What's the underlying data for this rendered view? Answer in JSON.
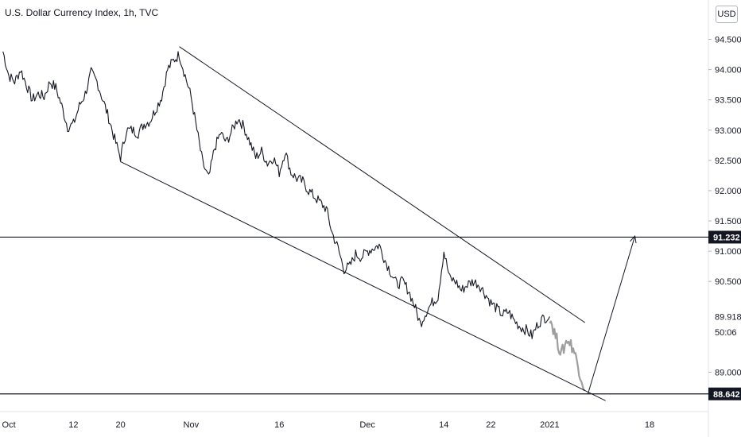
{
  "header": {
    "title": "U.S. Dollar Currency Index, 1h, TVC",
    "currency_button": "USD"
  },
  "chart_data": {
    "type": "line",
    "title": "U.S. Dollar Currency Index, 1h, TVC",
    "xlabel": "",
    "ylabel": "",
    "ylim": [
      88.35,
      95.15
    ],
    "y_ticks": [
      "94.500",
      "94.000",
      "93.500",
      "93.000",
      "92.500",
      "92.000",
      "91.500",
      "91.000",
      "90.500",
      "89.000"
    ],
    "x_ticks": [
      {
        "label": "Oct",
        "day": 0
      },
      {
        "label": "12",
        "day": 11
      },
      {
        "label": "20",
        "day": 19
      },
      {
        "label": "Nov",
        "day": 31
      },
      {
        "label": "16",
        "day": 46
      },
      {
        "label": "Dec",
        "day": 61
      },
      {
        "label": "14",
        "day": 74
      },
      {
        "label": "22",
        "day": 82
      },
      {
        "label": "2021",
        "day": 92
      },
      {
        "label": "18",
        "day": 109
      }
    ],
    "x_range": [
      -1.5,
      119
    ],
    "price_tags": [
      {
        "label": "91.232",
        "value": 91.232,
        "style": "dark"
      },
      {
        "label": "89.918",
        "value": 89.918,
        "style": "plain"
      },
      {
        "label": "50:06",
        "value": 89.66,
        "style": "plain"
      },
      {
        "label": "88.642",
        "value": 88.642,
        "style": "dark"
      }
    ],
    "horizontal_lines": [
      91.232,
      88.642
    ],
    "series": [
      {
        "style": "actual",
        "x": [
          -1,
          0,
          1,
          2,
          3,
          4,
          5,
          6,
          7,
          8,
          9,
          10,
          11,
          12,
          13,
          14,
          15,
          16,
          17,
          18,
          19,
          20,
          21,
          22,
          23,
          24,
          25,
          26,
          27,
          28,
          29,
          30,
          31,
          32,
          33,
          34,
          35,
          36,
          37,
          38,
          39,
          40,
          41,
          42,
          43,
          44,
          45,
          46,
          47,
          48,
          49,
          50,
          51,
          52,
          53,
          54,
          55,
          56,
          57,
          58,
          59,
          60,
          61,
          62,
          63,
          64,
          65,
          66,
          67,
          68,
          69,
          70,
          71,
          72,
          73,
          74,
          75,
          76,
          77,
          78,
          79,
          80,
          81,
          82,
          83,
          84,
          85,
          86,
          87,
          88,
          89,
          90,
          91,
          92
        ],
        "y": [
          94.3,
          93.9,
          93.8,
          94.0,
          93.75,
          93.5,
          93.6,
          93.55,
          93.8,
          93.7,
          93.4,
          93.05,
          93.1,
          93.4,
          93.6,
          93.95,
          93.8,
          93.5,
          93.2,
          92.85,
          92.55,
          93.0,
          93.0,
          92.95,
          93.1,
          93.15,
          93.35,
          93.55,
          94.0,
          94.15,
          94.25,
          93.9,
          93.55,
          93.0,
          92.45,
          92.2,
          92.7,
          92.95,
          92.8,
          93.0,
          93.2,
          93.05,
          92.8,
          92.55,
          92.65,
          92.45,
          92.55,
          92.3,
          92.65,
          92.3,
          92.2,
          92.15,
          92.0,
          91.9,
          91.8,
          91.7,
          91.3,
          91.05,
          90.7,
          90.75,
          90.95,
          90.9,
          91.0,
          91.05,
          91.1,
          90.85,
          90.65,
          90.45,
          90.5,
          90.35,
          90.1,
          89.8,
          90.0,
          90.15,
          90.25,
          91.0,
          90.55,
          90.5,
          90.35,
          90.45,
          90.5,
          90.45,
          90.3,
          90.15,
          90.05,
          89.95,
          90.0,
          89.85,
          89.75,
          89.7,
          89.6,
          89.8,
          89.9,
          89.92
        ]
      },
      {
        "style": "projected",
        "x": [
          92,
          93,
          94,
          95,
          96,
          97,
          98
        ],
        "y": [
          89.92,
          89.6,
          89.3,
          89.55,
          89.4,
          89.05,
          88.7
        ]
      }
    ],
    "annotations": [
      {
        "type": "trendline",
        "from": [
          29,
          94.38
        ],
        "to": [
          98,
          89.82
        ]
      },
      {
        "type": "trendline",
        "from": [
          19,
          92.48
        ],
        "to": [
          101.5,
          88.53
        ]
      },
      {
        "type": "arrow",
        "from": [
          98.5,
          88.64
        ],
        "to": [
          106.5,
          91.25
        ]
      }
    ]
  },
  "colors": {
    "series": "#131722",
    "projection": "#9e9e9e",
    "drawing": "#131722",
    "tag_dark": "#131722",
    "axis_border": "#e0e3eb"
  }
}
